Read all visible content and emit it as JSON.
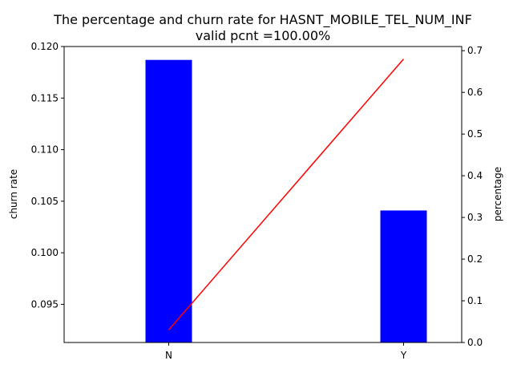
{
  "chart_data": {
    "type": "bar",
    "title": "The percentage and churn rate for HASNT_MOBILE_TEL_NUM_INF",
    "subtitle": "valid pcnt =100.00%",
    "categories": [
      "N",
      "Y"
    ],
    "left_axis": {
      "label": "churn rate",
      "ylim": [
        0.0913,
        0.12
      ],
      "ticks": [
        "0.095",
        "0.100",
        "0.105",
        "0.110",
        "0.115",
        "0.120"
      ]
    },
    "right_axis": {
      "label": "percentage",
      "ylim": [
        0.0,
        0.71
      ],
      "ticks": [
        "0.0",
        "0.1",
        "0.2",
        "0.3",
        "0.4",
        "0.5",
        "0.6",
        "0.7"
      ]
    },
    "series": [
      {
        "type": "bar",
        "axis": "left",
        "color": "#0000ff",
        "values": [
          0.1187,
          0.1041
        ]
      },
      {
        "type": "line",
        "axis": "right",
        "color": "#ff0000",
        "values": [
          0.03,
          0.68
        ]
      }
    ],
    "grid": false
  }
}
